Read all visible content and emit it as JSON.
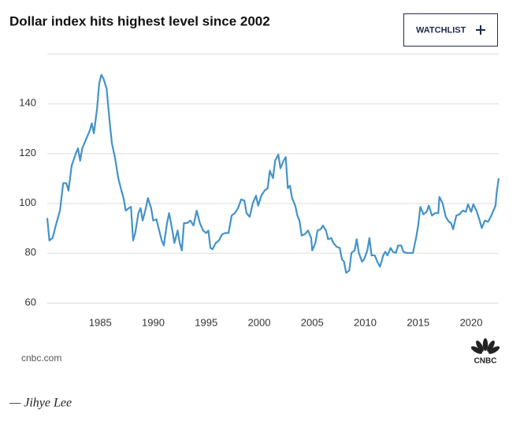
{
  "chart_data": {
    "type": "line",
    "title": "Dollar index hits highest level since 2002",
    "color": "#4393c8",
    "xlim": [
      1980,
      2022.6
    ],
    "xticks": [
      1985,
      1990,
      1995,
      2000,
      2005,
      2010,
      2015,
      2020
    ],
    "ylim": [
      60,
      160
    ],
    "yticks": [
      60,
      80,
      100,
      120,
      140
    ],
    "grid": true,
    "x": [
      1980.0,
      1980.2,
      1980.5,
      1980.8,
      1981.2,
      1981.5,
      1981.8,
      1982.0,
      1982.3,
      1982.7,
      1982.9,
      1983.1,
      1983.3,
      1983.7,
      1984.0,
      1984.2,
      1984.4,
      1984.7,
      1984.9,
      1985.1,
      1985.3,
      1985.6,
      1985.9,
      1986.1,
      1986.4,
      1986.7,
      1987.0,
      1987.2,
      1987.4,
      1987.7,
      1987.9,
      1988.1,
      1988.3,
      1988.6,
      1988.8,
      1989.0,
      1989.3,
      1989.5,
      1989.8,
      1990.0,
      1990.3,
      1990.5,
      1990.8,
      1991.0,
      1991.3,
      1991.5,
      1991.8,
      1992.0,
      1992.3,
      1992.5,
      1992.7,
      1992.9,
      1993.2,
      1993.5,
      1993.8,
      1994.1,
      1994.4,
      1994.7,
      1995.0,
      1995.2,
      1995.4,
      1995.6,
      1995.9,
      1996.2,
      1996.5,
      1996.8,
      1997.1,
      1997.4,
      1997.7,
      1998.0,
      1998.3,
      1998.6,
      1998.8,
      1999.1,
      1999.4,
      1999.7,
      1999.9,
      2000.2,
      2000.5,
      2000.8,
      2001.0,
      2001.3,
      2001.5,
      2001.8,
      2002.0,
      2002.3,
      2002.5,
      2002.7,
      2002.9,
      2003.1,
      2003.4,
      2003.6,
      2003.8,
      2004.0,
      2004.3,
      2004.6,
      2004.9,
      2005.0,
      2005.3,
      2005.5,
      2005.8,
      2006.0,
      2006.3,
      2006.5,
      2006.8,
      2007.0,
      2007.3,
      2007.6,
      2007.8,
      2008.0,
      2008.2,
      2008.5,
      2008.7,
      2009.0,
      2009.2,
      2009.4,
      2009.7,
      2009.9,
      2010.2,
      2010.4,
      2010.6,
      2010.9,
      2011.2,
      2011.4,
      2011.7,
      2011.9,
      2012.1,
      2012.4,
      2012.6,
      2012.9,
      2013.1,
      2013.4,
      2013.6,
      2013.9,
      2014.2,
      2014.5,
      2014.8,
      2015.0,
      2015.2,
      2015.5,
      2015.8,
      2016.0,
      2016.3,
      2016.6,
      2016.9,
      2017.0,
      2017.3,
      2017.6,
      2017.9,
      2018.1,
      2018.3,
      2018.6,
      2018.9,
      2019.2,
      2019.5,
      2019.7,
      2020.0,
      2020.2,
      2020.5,
      2020.8,
      2021.0,
      2021.3,
      2021.6,
      2021.9,
      2022.1,
      2022.3,
      2022.4,
      2022.6
    ],
    "values": [
      94,
      85,
      86,
      91,
      97,
      108,
      108,
      105,
      115,
      120,
      122,
      117,
      122,
      126,
      129,
      132,
      128,
      138,
      148,
      151.5,
      150,
      146,
      132,
      124,
      118,
      110,
      105,
      102,
      97,
      98,
      98.5,
      85,
      88,
      96,
      98,
      93,
      98,
      102,
      98,
      93,
      93.5,
      90,
      85,
      83,
      92,
      96,
      89,
      84,
      89,
      84,
      81,
      92,
      92,
      93,
      91,
      97,
      92,
      89,
      88,
      89,
      82,
      81.5,
      84,
      85,
      87.5,
      88,
      88,
      95,
      96,
      98,
      101.5,
      101,
      96,
      94.5,
      100,
      103,
      99,
      103,
      105,
      106,
      113,
      110,
      117,
      119.5,
      114,
      117,
      118.5,
      106,
      107,
      102,
      99,
      95,
      93,
      87,
      87.5,
      89,
      86,
      81,
      84,
      89,
      89.5,
      91,
      89,
      85.5,
      86,
      84,
      82.5,
      82,
      77.5,
      76.5,
      72,
      73,
      80,
      81,
      85.5,
      80,
      76.5,
      77.5,
      81,
      86,
      79,
      79,
      76,
      74.5,
      79,
      80.5,
      79,
      82,
      80.5,
      80,
      83,
      83,
      80.5,
      80,
      80,
      80,
      86,
      91,
      98.5,
      95.5,
      96.5,
      99,
      95,
      96,
      96,
      102.5,
      100,
      94.5,
      92.5,
      92,
      89.5,
      95,
      95.5,
      97,
      96.5,
      99.5,
      96.5,
      99.5,
      97,
      93,
      90,
      93,
      92.5,
      95,
      97,
      99,
      104,
      110
    ]
  },
  "header": {
    "button": "WATCHLIST"
  },
  "footer": {
    "source": "cnbc.com",
    "logo": "CNBC"
  },
  "byline": "— Jihye Lee"
}
